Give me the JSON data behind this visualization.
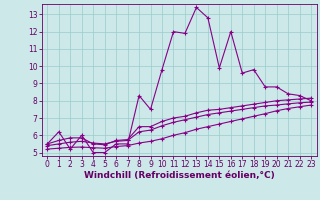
{
  "title": "",
  "xlabel": "Windchill (Refroidissement éolien,°C)",
  "ylabel": "",
  "background_color": "#cce8e8",
  "grid_color": "#99cccc",
  "line_color": "#880088",
  "xlim": [
    -0.5,
    23.5
  ],
  "ylim": [
    4.8,
    13.6
  ],
  "xticks": [
    0,
    1,
    2,
    3,
    4,
    5,
    6,
    7,
    8,
    9,
    10,
    11,
    12,
    13,
    14,
    15,
    16,
    17,
    18,
    19,
    20,
    21,
    22,
    23
  ],
  "yticks": [
    5,
    6,
    7,
    8,
    9,
    10,
    11,
    12,
    13
  ],
  "line1_y": [
    5.5,
    6.2,
    5.2,
    6.0,
    5.0,
    5.0,
    5.5,
    5.5,
    8.3,
    7.5,
    9.8,
    12.0,
    11.9,
    13.4,
    12.8,
    9.9,
    12.0,
    9.6,
    9.8,
    8.8,
    8.8,
    8.4,
    8.3,
    8.0
  ],
  "line2_y": [
    5.5,
    5.7,
    5.85,
    5.85,
    5.5,
    5.45,
    5.7,
    5.75,
    6.5,
    6.5,
    6.8,
    7.0,
    7.1,
    7.3,
    7.45,
    7.5,
    7.6,
    7.7,
    7.8,
    7.9,
    8.0,
    8.05,
    8.1,
    8.15
  ],
  "line3_y": [
    5.4,
    5.5,
    5.6,
    5.65,
    5.55,
    5.5,
    5.65,
    5.7,
    6.2,
    6.3,
    6.55,
    6.75,
    6.9,
    7.05,
    7.2,
    7.3,
    7.4,
    7.5,
    7.6,
    7.7,
    7.75,
    7.82,
    7.88,
    7.92
  ],
  "line4_y": [
    5.2,
    5.25,
    5.3,
    5.32,
    5.28,
    5.25,
    5.35,
    5.4,
    5.55,
    5.65,
    5.8,
    6.0,
    6.15,
    6.35,
    6.5,
    6.65,
    6.8,
    6.95,
    7.1,
    7.25,
    7.42,
    7.55,
    7.65,
    7.75
  ],
  "marker": "+",
  "markersize": 3,
  "linewidth": 0.8,
  "font_color": "#660066",
  "tick_fontsize": 5.5,
  "label_fontsize": 6.5
}
